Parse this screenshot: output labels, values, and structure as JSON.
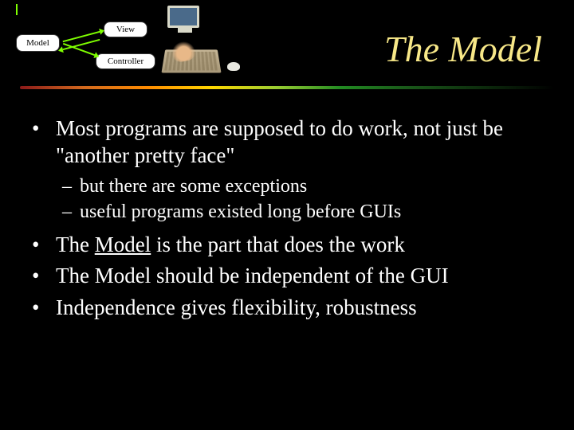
{
  "title": "The Model",
  "diagram": {
    "model_label": "Model",
    "view_label": "View",
    "controller_label": "Controller"
  },
  "colors": {
    "background": "#000000",
    "title_color": "#f8e888",
    "body_text": "#ffffff",
    "arrow_color": "#7fff00",
    "box_bg": "#ffffff",
    "divider_gradient": [
      "#8b1a1a",
      "#d2691e",
      "#ff8c00",
      "#ffd700",
      "#9acd32",
      "#228b22",
      "#1a5a1a"
    ]
  },
  "typography": {
    "title_fontsize": 46,
    "title_style": "italic",
    "body_fontsize": 27,
    "sub_fontsize": 24,
    "font_family": "Times New Roman"
  },
  "bullets": [
    {
      "text_before": "Most programs are supposed to do work, not just be \"another pretty face\"",
      "subs": [
        "but there are some exceptions",
        "useful programs existed long before GUIs"
      ]
    },
    {
      "text_before": "The ",
      "underlined": "Model",
      "text_after": " is the part that does the work"
    },
    {
      "text_before": "The Model should be independent of the GUI"
    },
    {
      "text_before": "Independence gives flexibility, robustness"
    }
  ],
  "bullet_marker": "•",
  "sub_marker": "–"
}
